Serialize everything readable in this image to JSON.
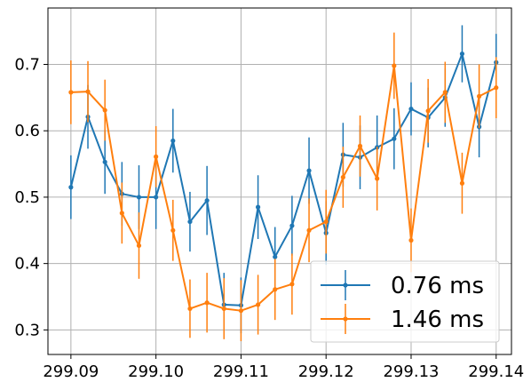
{
  "chart_data": {
    "type": "line",
    "title": "",
    "xlabel": "",
    "ylabel": "",
    "xlim": [
      299.0873,
      299.1418
    ],
    "ylim": [
      0.263,
      0.785
    ],
    "grid": true,
    "legend_placement": "lower-right",
    "x_ticks": [
      299.09,
      299.1,
      299.11,
      299.12,
      299.13,
      299.14
    ],
    "x_tick_labels": [
      "299.09",
      "299.10",
      "299.11",
      "299.12",
      "299.13",
      "299.14"
    ],
    "y_ticks": [
      0.3,
      0.4,
      0.5,
      0.6,
      0.7
    ],
    "y_tick_labels": [
      "0.3",
      "0.4",
      "0.5",
      "0.6",
      "0.7"
    ],
    "x": [
      299.09,
      299.092,
      299.094,
      299.096,
      299.098,
      299.1,
      299.102,
      299.104,
      299.106,
      299.108,
      299.11,
      299.112,
      299.114,
      299.116,
      299.118,
      299.12,
      299.122,
      299.124,
      299.126,
      299.128,
      299.13,
      299.132,
      299.134,
      299.136,
      299.138,
      299.14
    ],
    "series": [
      {
        "name": "0.76 ms",
        "color": "#1f77b4",
        "values": [
          0.515,
          0.621,
          0.553,
          0.505,
          0.5,
          0.5,
          0.585,
          0.463,
          0.495,
          0.338,
          0.337,
          0.485,
          0.41,
          0.457,
          0.54,
          0.446,
          0.564,
          0.56,
          0.575,
          0.588,
          0.633,
          0.62,
          0.65,
          0.716,
          0.606,
          0.703
        ],
        "errors": [
          0.048,
          0.048,
          0.048,
          0.048,
          0.048,
          0.048,
          0.048,
          0.045,
          0.052,
          0.048,
          0.042,
          0.048,
          0.045,
          0.045,
          0.05,
          0.048,
          0.048,
          0.048,
          0.048,
          0.046,
          0.04,
          0.045,
          0.044,
          0.043,
          0.046,
          0.043
        ]
      },
      {
        "name": "1.46 ms",
        "color": "#ff7f0e",
        "values": [
          0.658,
          0.659,
          0.631,
          0.476,
          0.427,
          0.561,
          0.45,
          0.332,
          0.341,
          0.332,
          0.329,
          0.338,
          0.361,
          0.369,
          0.45,
          0.463,
          0.53,
          0.577,
          0.528,
          0.698,
          0.435,
          0.63,
          0.658,
          0.521,
          0.652,
          0.665
        ],
        "errors": [
          0.048,
          0.046,
          0.046,
          0.046,
          0.05,
          0.046,
          0.046,
          0.044,
          0.045,
          0.046,
          0.046,
          0.045,
          0.046,
          0.046,
          0.048,
          0.048,
          0.046,
          0.046,
          0.048,
          0.05,
          0.048,
          0.048,
          0.046,
          0.046,
          0.048,
          0.046
        ]
      }
    ]
  }
}
